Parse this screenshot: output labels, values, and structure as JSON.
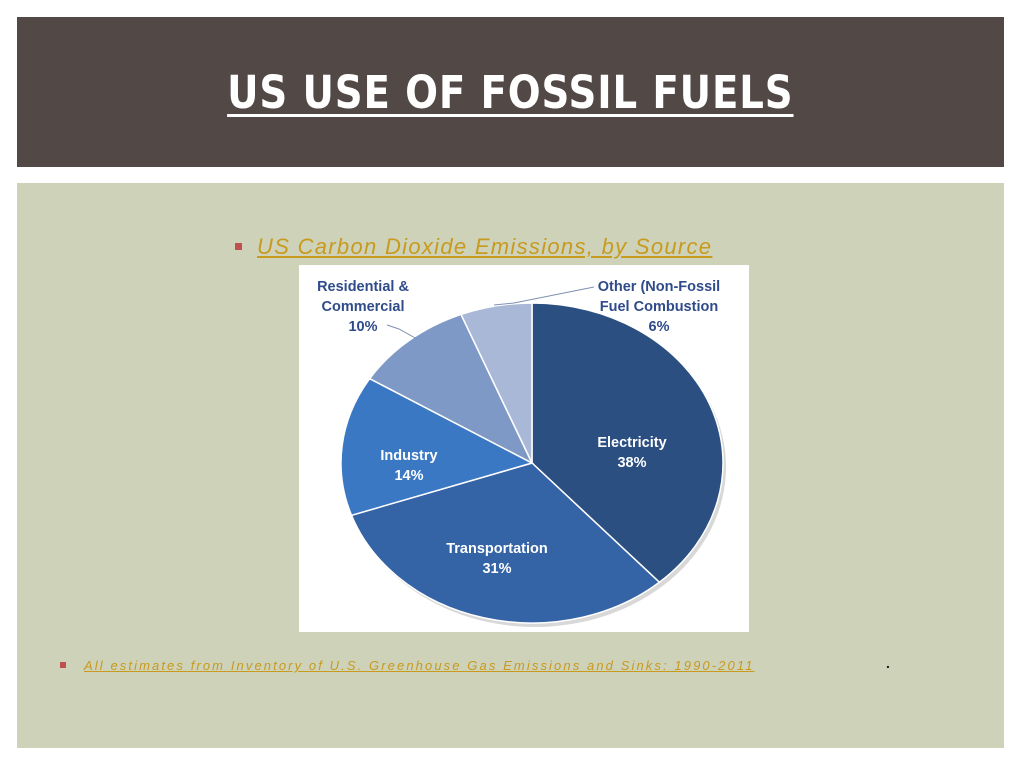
{
  "slide": {
    "title": "US USE OF FOSSIL FUELS",
    "subheading": "US Carbon Dioxide Emissions, by Source",
    "footnote": "All estimates from Inventory of U.S. Greenhouse Gas Emissions and Sinks: 1990-2011",
    "footnote_period": ".",
    "colors": {
      "title_bg": "#524845",
      "content_bg": "#ced2b8",
      "link": "#c89a1e",
      "bullet": "#c0504d"
    }
  },
  "chart_data": {
    "type": "pie",
    "title": "",
    "slices": [
      {
        "label_lines": [
          "Electricity",
          "38%"
        ],
        "value": 38,
        "color": "#2a4f80"
      },
      {
        "label_lines": [
          "Transportation",
          "31%"
        ],
        "value": 31,
        "color": "#3564a6"
      },
      {
        "label_lines": [
          "Industry",
          "14%"
        ],
        "value": 14,
        "color": "#3b78c4"
      },
      {
        "label_lines": [
          "Residential &",
          "Commercial",
          "10%"
        ],
        "value": 10,
        "color": "#7f99c6"
      },
      {
        "label_lines": [
          "Other (Non-Fossil",
          "Fuel Combustion",
          "6%"
        ],
        "value": 6,
        "color": "#aab8d8"
      }
    ],
    "legend": "none"
  }
}
